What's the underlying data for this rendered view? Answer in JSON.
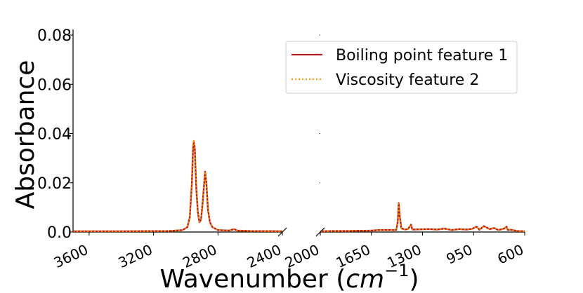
{
  "chart_data": {
    "type": "line",
    "title": "",
    "ylabel": "Absorbance",
    "xlabel_main": "Wavenumber (",
    "xlabel_sym": "cm",
    "xlabel_exp": "−1",
    "xlabel_close": ")",
    "ylim": [
      0,
      0.08
    ],
    "yticks": [
      "0.0",
      "0.02",
      "0.04",
      "0.06",
      "0.08"
    ],
    "ytick_values": [
      0,
      0.02,
      0.04,
      0.06,
      0.08
    ],
    "panels": [
      {
        "xlim": [
          3700,
          2400
        ],
        "xticks": [
          3600,
          3200,
          2800,
          2400
        ],
        "xtick_labels": [
          "3600",
          "3200",
          "2800",
          "2400"
        ]
      },
      {
        "xlim": [
          2000,
          600
        ],
        "xticks": [
          2000,
          1650,
          1300,
          950,
          600
        ],
        "xtick_labels": [
          "2000",
          "1650",
          "1300",
          "950",
          "600"
        ]
      }
    ],
    "legend_position": "top-right",
    "series": [
      {
        "name": "Boiling point feature 1",
        "color": "#b22222",
        "style": "solid",
        "points": [
          [
            3700,
            0.0003
          ],
          [
            3400,
            0.0003
          ],
          [
            3100,
            0.0004
          ],
          [
            3020,
            0.0008
          ],
          [
            2990,
            0.002
          ],
          [
            2975,
            0.006
          ],
          [
            2962,
            0.02
          ],
          [
            2955,
            0.034
          ],
          [
            2950,
            0.0365
          ],
          [
            2944,
            0.034
          ],
          [
            2935,
            0.018
          ],
          [
            2925,
            0.008
          ],
          [
            2915,
            0.004
          ],
          [
            2905,
            0.005
          ],
          [
            2895,
            0.012
          ],
          [
            2880,
            0.0245
          ],
          [
            2872,
            0.02
          ],
          [
            2862,
            0.009
          ],
          [
            2850,
            0.004
          ],
          [
            2835,
            0.002
          ],
          [
            2800,
            0.0008
          ],
          [
            2730,
            0.0006
          ],
          [
            2700,
            0.0012
          ],
          [
            2680,
            0.0006
          ],
          [
            2600,
            0.0004
          ],
          [
            2400,
            0.0003
          ],
          [
            2000,
            0.0003
          ],
          [
            1900,
            0.0004
          ],
          [
            1800,
            0.0004
          ],
          [
            1750,
            0.0005
          ],
          [
            1700,
            0.0005
          ],
          [
            1650,
            0.0006
          ],
          [
            1600,
            0.0008
          ],
          [
            1480,
            0.0008
          ],
          [
            1470,
            0.004
          ],
          [
            1463,
            0.0118
          ],
          [
            1455,
            0.006
          ],
          [
            1445,
            0.0015
          ],
          [
            1420,
            0.001
          ],
          [
            1400,
            0.0012
          ],
          [
            1378,
            0.003
          ],
          [
            1370,
            0.001
          ],
          [
            1300,
            0.0011
          ],
          [
            1250,
            0.0012
          ],
          [
            1200,
            0.001
          ],
          [
            1150,
            0.0014
          ],
          [
            1100,
            0.0008
          ],
          [
            1050,
            0.0012
          ],
          [
            1000,
            0.001
          ],
          [
            960,
            0.0013
          ],
          [
            930,
            0.0022
          ],
          [
            910,
            0.0009
          ],
          [
            880,
            0.0024
          ],
          [
            860,
            0.0018
          ],
          [
            840,
            0.0012
          ],
          [
            810,
            0.0016
          ],
          [
            780,
            0.0008
          ],
          [
            740,
            0.0014
          ],
          [
            725,
            0.0022
          ],
          [
            715,
            0.0008
          ],
          [
            700,
            0.001
          ],
          [
            650,
            0.0004
          ],
          [
            600,
            0.0003
          ]
        ]
      },
      {
        "name": "Viscosity feature 2",
        "color": "#ff8c00",
        "style": "dotted",
        "points": [
          [
            3700,
            0.0003
          ],
          [
            3400,
            0.0003
          ],
          [
            3100,
            0.0004
          ],
          [
            3020,
            0.0008
          ],
          [
            2990,
            0.002
          ],
          [
            2975,
            0.006
          ],
          [
            2962,
            0.021
          ],
          [
            2955,
            0.035
          ],
          [
            2950,
            0.0375
          ],
          [
            2944,
            0.035
          ],
          [
            2935,
            0.019
          ],
          [
            2925,
            0.0085
          ],
          [
            2915,
            0.0042
          ],
          [
            2905,
            0.0052
          ],
          [
            2895,
            0.012
          ],
          [
            2880,
            0.0245
          ],
          [
            2872,
            0.0202
          ],
          [
            2862,
            0.009
          ],
          [
            2850,
            0.004
          ],
          [
            2835,
            0.002
          ],
          [
            2800,
            0.0008
          ],
          [
            2730,
            0.0006
          ],
          [
            2700,
            0.0012
          ],
          [
            2680,
            0.0006
          ],
          [
            2600,
            0.0004
          ],
          [
            2400,
            0.0003
          ],
          [
            2000,
            0.0003
          ],
          [
            1900,
            0.0004
          ],
          [
            1800,
            0.0004
          ],
          [
            1750,
            0.0005
          ],
          [
            1700,
            0.0005
          ],
          [
            1650,
            0.0006
          ],
          [
            1600,
            0.0008
          ],
          [
            1480,
            0.0008
          ],
          [
            1470,
            0.004
          ],
          [
            1463,
            0.0122
          ],
          [
            1455,
            0.006
          ],
          [
            1445,
            0.0015
          ],
          [
            1420,
            0.001
          ],
          [
            1400,
            0.0012
          ],
          [
            1378,
            0.003
          ],
          [
            1370,
            0.001
          ],
          [
            1300,
            0.0011
          ],
          [
            1250,
            0.0012
          ],
          [
            1200,
            0.001
          ],
          [
            1150,
            0.0014
          ],
          [
            1100,
            0.0008
          ],
          [
            1050,
            0.0012
          ],
          [
            1000,
            0.001
          ],
          [
            960,
            0.0013
          ],
          [
            930,
            0.0022
          ],
          [
            910,
            0.0009
          ],
          [
            880,
            0.0024
          ],
          [
            860,
            0.0018
          ],
          [
            840,
            0.0012
          ],
          [
            810,
            0.0016
          ],
          [
            780,
            0.0008
          ],
          [
            740,
            0.0014
          ],
          [
            725,
            0.0022
          ],
          [
            715,
            0.0008
          ],
          [
            700,
            0.001
          ],
          [
            650,
            0.0004
          ],
          [
            600,
            0.0003
          ]
        ]
      }
    ]
  }
}
